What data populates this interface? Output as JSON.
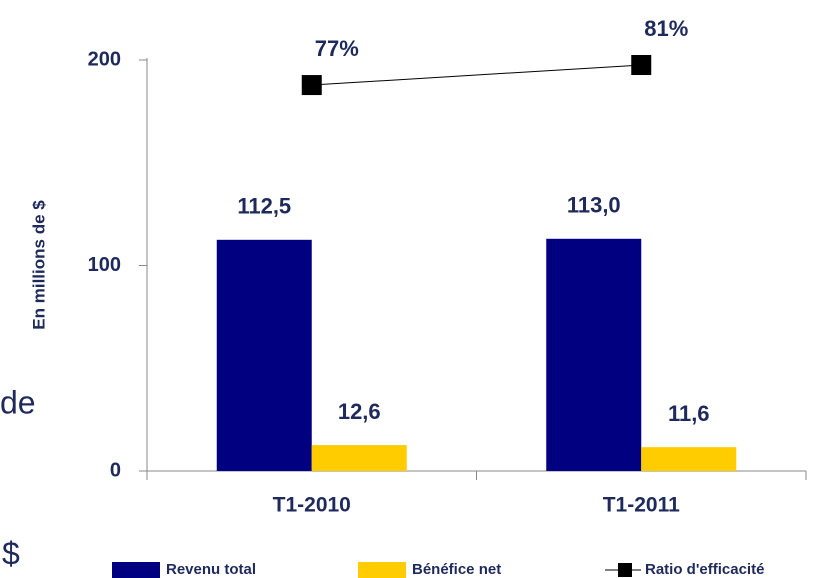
{
  "chart_data": {
    "type": "bar",
    "ylabel": "En millions de $",
    "categories": [
      "T1-2010",
      "T1-2011"
    ],
    "series": [
      {
        "name": "Revenu total",
        "color": "#000080",
        "values": [
          112.5,
          113.0
        ],
        "value_labels": [
          "112,5",
          "113,0"
        ]
      },
      {
        "name": "Bénéfice net",
        "color": "#ffcc00",
        "values": [
          12.6,
          11.6
        ],
        "value_labels": [
          "12,6",
          "11,6"
        ]
      },
      {
        "name": "Ratio d'efficacité",
        "color": "#000000",
        "type": "line",
        "axis": "y2",
        "values": [
          77,
          81
        ],
        "value_labels": [
          "77%",
          "81%"
        ]
      }
    ],
    "ylim": [
      0,
      200
    ],
    "yticks": [
      0,
      100,
      200
    ],
    "y2lim": [
      0,
      82
    ],
    "legend": "bottom",
    "annotations": [
      "de",
      "$"
    ]
  }
}
